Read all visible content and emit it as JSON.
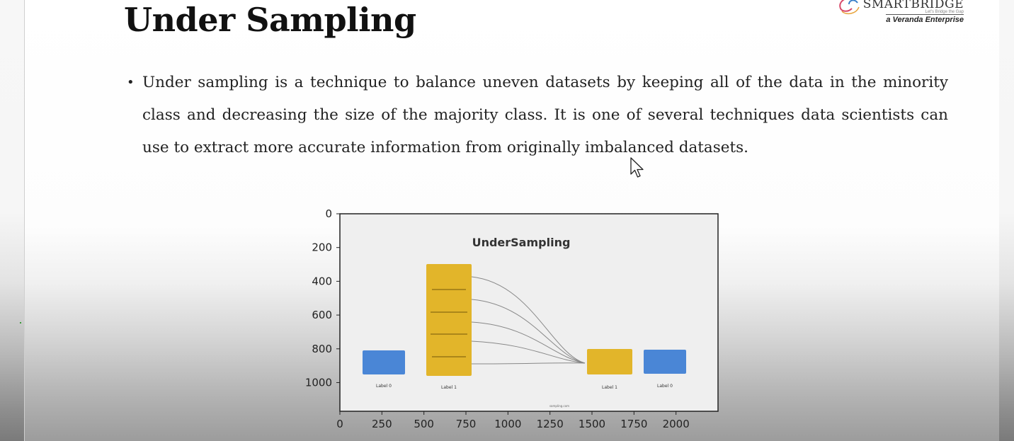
{
  "slide": {
    "title": "Under Sampling",
    "bullet": "Under sampling is a technique to balance uneven datasets by keeping all of the data in the minority class and decreasing the size of the majority class. It is one of several techniques data scientists can use to extract more accurate information from originally imbalanced datasets."
  },
  "logo": {
    "name": "SMARTBRIDGE",
    "tagline": "Let's Bridge the Gap",
    "sub": "a Veranda Enterprise"
  },
  "chart_data": {
    "type": "image",
    "title": "UnderSampling",
    "xticks": [
      "0",
      "250",
      "500",
      "750",
      "1000",
      "1250",
      "1500",
      "1750",
      "2000"
    ],
    "yticks": [
      "0",
      "200",
      "400",
      "600",
      "800",
      "1000"
    ],
    "xlim": [
      0,
      2250
    ],
    "ylim": [
      1170,
      0
    ],
    "bar_labels": [
      "Label 0",
      "Label 1",
      "Label 1",
      "Label 0"
    ],
    "footer_text": "sampling.com",
    "colors": {
      "blue": "#4a86d6",
      "gold": "#e2b52a"
    }
  }
}
